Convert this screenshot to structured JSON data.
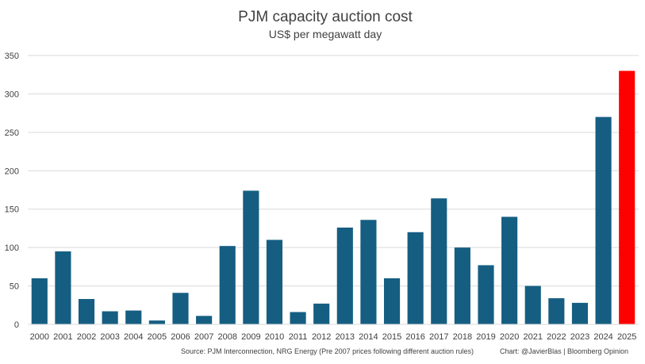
{
  "chart_data": {
    "type": "bar",
    "title": "PJM capacity auction cost",
    "subtitle": "US$ per megawatt day",
    "xlabel": "",
    "ylabel": "",
    "ylim": [
      0,
      350
    ],
    "yticks": [
      "0",
      "50",
      "100",
      "150",
      "200",
      "250",
      "300",
      "350"
    ],
    "categories": [
      "2000",
      "2001",
      "2002",
      "2003",
      "2004",
      "2005",
      "2006",
      "2007",
      "2008",
      "2009",
      "2010",
      "2011",
      "2012",
      "2013",
      "2014",
      "2015",
      "2016",
      "2017",
      "2018",
      "2019",
      "2020",
      "2021",
      "2022",
      "2023",
      "2024",
      "2025"
    ],
    "values": [
      60,
      95,
      33,
      17,
      18,
      5,
      41,
      11,
      102,
      174,
      110,
      16,
      27,
      126,
      136,
      60,
      120,
      164,
      100,
      77,
      140,
      50,
      34,
      28,
      270,
      330
    ],
    "grid": true,
    "legend": "none",
    "colors": {
      "bar": "#155e82",
      "highlight": "#ff0000",
      "grid": "#d9d9d9",
      "text": "#404040"
    },
    "highlight_index": 25
  },
  "source": "Source: PJM Interconnection, NRG Energy (Pre 2007 prices following different auction rules)",
  "credit": "Chart: @JavierBlas  |  Bloomberg Opinion"
}
